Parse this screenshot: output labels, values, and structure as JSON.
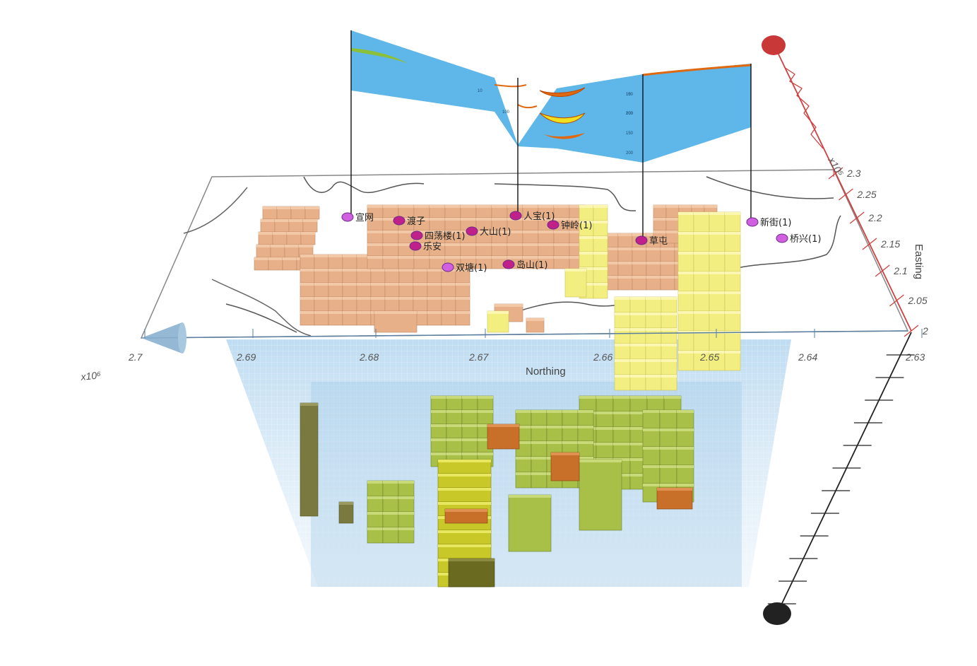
{
  "northing_axis": {
    "title": "Northing",
    "exponent_label": "x10⁶",
    "ticks": [
      "2.7",
      "2.69",
      "2.68",
      "2.67",
      "2.66",
      "2.65",
      "2.64",
      "2.63"
    ]
  },
  "easting_axis": {
    "title": "Easting",
    "exponent_label": "x10⁵",
    "ticks": [
      "2",
      "2.05",
      "2.1",
      "2.15",
      "2.2",
      "2.25",
      "2.3"
    ]
  },
  "wells": [
    {
      "label": "宣网",
      "color": "#d060e0"
    },
    {
      "label": "渡子",
      "color": "#c0208a"
    },
    {
      "label": "四荡楼(1)",
      "color": "#c0208a"
    },
    {
      "label": "乐安",
      "color": "#c0208a"
    },
    {
      "label": "大山(1)",
      "color": "#c0208a"
    },
    {
      "label": "人宝(1)",
      "color": "#c0208a"
    },
    {
      "label": "钟岭(1)",
      "color": "#c0208a"
    },
    {
      "label": "草屯",
      "color": "#c0208a"
    },
    {
      "label": "新街(1)",
      "color": "#d060e0"
    },
    {
      "label": "桥兴(1)",
      "color": "#d060e0"
    },
    {
      "label": "双塘(1)",
      "color": "#d060e0"
    },
    {
      "label": "岛山(1)",
      "color": "#c0208a"
    }
  ],
  "section_panel": {
    "fill": "#5fb6e8",
    "depth_ticks": [
      "10",
      "100",
      "150",
      "200"
    ]
  },
  "colors": {
    "block_orange": "#e8b088",
    "block_yellow": "#f2ef80",
    "block_green": "#a8c048",
    "water": "#cfe3f3",
    "axis_red": "#d04040",
    "axis_black": "#222222"
  }
}
